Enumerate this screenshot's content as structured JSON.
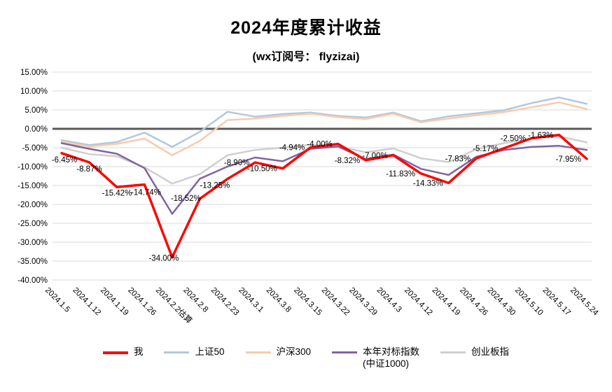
{
  "chart_data": {
    "type": "line",
    "title": "2024年度累计收益",
    "subtitle": "(wx订阅号：  flyzizai)",
    "categories": [
      "2024.1.5",
      "2024.1.12",
      "2024.1.19",
      "2024.1.26",
      "2024.2.2估算",
      "2024.2.8",
      "2024.2.23",
      "2024.3.1",
      "2024.3.8",
      "2024.3.15",
      "2024.3.22",
      "2024.3.29",
      "2024.4.3",
      "2024.4.12",
      "2024.4.19",
      "2024.4.26",
      "2024.4.30",
      "2024.5.10",
      "2024.5.17",
      "2024.5.24"
    ],
    "series": [
      {
        "name": "我",
        "color": "#ff0000",
        "line_width": 3.5,
        "values": [
          -6.45,
          -8.87,
          -15.42,
          -14.74,
          -34.0,
          -18.52,
          -13.25,
          -8.9,
          -10.5,
          -4.94,
          -4.0,
          -8.32,
          -7.0,
          -11.83,
          -14.33,
          -7.83,
          -5.17,
          -2.5,
          -1.63,
          -7.95
        ],
        "labels": [
          "-6.45%",
          "-8.87%",
          "-15.42%",
          "-14.74%",
          "-34.00%",
          "-18.52%",
          "-13.25%",
          "-8.90%",
          "-10.50%",
          "-4.94%",
          "-4.00%",
          "-8.32%",
          "-7.00%",
          "-11.83%",
          "-14.33%",
          "-7.83%",
          "-5.17%",
          "-2.50%",
          "-1.63%",
          "-7.95%"
        ]
      },
      {
        "name": "上证50",
        "color": "#b4c7dc",
        "line_width": 2.5,
        "values": [
          -3.0,
          -4.3,
          -3.5,
          -1.0,
          -4.8,
          -0.8,
          4.5,
          3.2,
          3.9,
          4.3,
          3.4,
          3.0,
          4.3,
          2.0,
          3.3,
          4.1,
          4.9,
          6.8,
          8.3,
          6.6
        ]
      },
      {
        "name": "沪深300",
        "color": "#f8cbad",
        "line_width": 2.5,
        "values": [
          -3.5,
          -4.7,
          -4.0,
          -2.6,
          -7.0,
          -3.2,
          2.3,
          2.7,
          3.4,
          4.0,
          3.1,
          2.6,
          4.0,
          1.7,
          2.7,
          3.6,
          4.4,
          5.7,
          7.0,
          5.2
        ]
      },
      {
        "name": "本年对标指数",
        "subname": "(中证1000)",
        "color": "#8064a2",
        "line_width": 2.5,
        "values": [
          -3.8,
          -5.3,
          -6.6,
          -10.4,
          -22.5,
          -13.2,
          -10.0,
          -7.6,
          -8.6,
          -5.3,
          -4.7,
          -8.0,
          -6.8,
          -10.6,
          -12.2,
          -7.4,
          -5.6,
          -4.8,
          -4.5,
          -5.6
        ]
      },
      {
        "name": "创业板指",
        "color": "#d0cece",
        "line_width": 2.5,
        "values": [
          -5.0,
          -6.7,
          -7.3,
          -10.2,
          -14.5,
          -12.0,
          -7.0,
          -5.6,
          -5.0,
          -4.2,
          -4.6,
          -6.2,
          -5.2,
          -7.8,
          -8.8,
          -5.4,
          -3.8,
          -2.6,
          -2.0,
          -3.6
        ]
      }
    ],
    "y_axis": {
      "min": -40,
      "max": 15,
      "step": 5,
      "format": "0.00%"
    },
    "grid": true,
    "gridline_color": "#d9d9d9",
    "zero_line_color": "#595959",
    "legend_position": "bottom",
    "background": "#ffffff"
  }
}
